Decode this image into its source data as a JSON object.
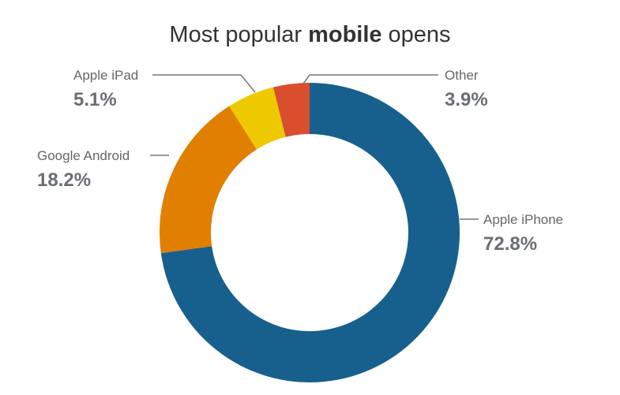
{
  "chart_data": {
    "type": "donut",
    "title_parts": [
      "Most popular",
      "mobile",
      "opens"
    ],
    "categories": [
      "Apple iPhone",
      "Google Android",
      "Apple iPad",
      "Other"
    ],
    "values": [
      72.8,
      18.2,
      5.1,
      3.9
    ],
    "value_labels": [
      "72.8%",
      "18.2%",
      "5.1%",
      "3.9%"
    ],
    "colors": [
      "#17608e",
      "#e07f00",
      "#eec900",
      "#d94f2e"
    ]
  }
}
